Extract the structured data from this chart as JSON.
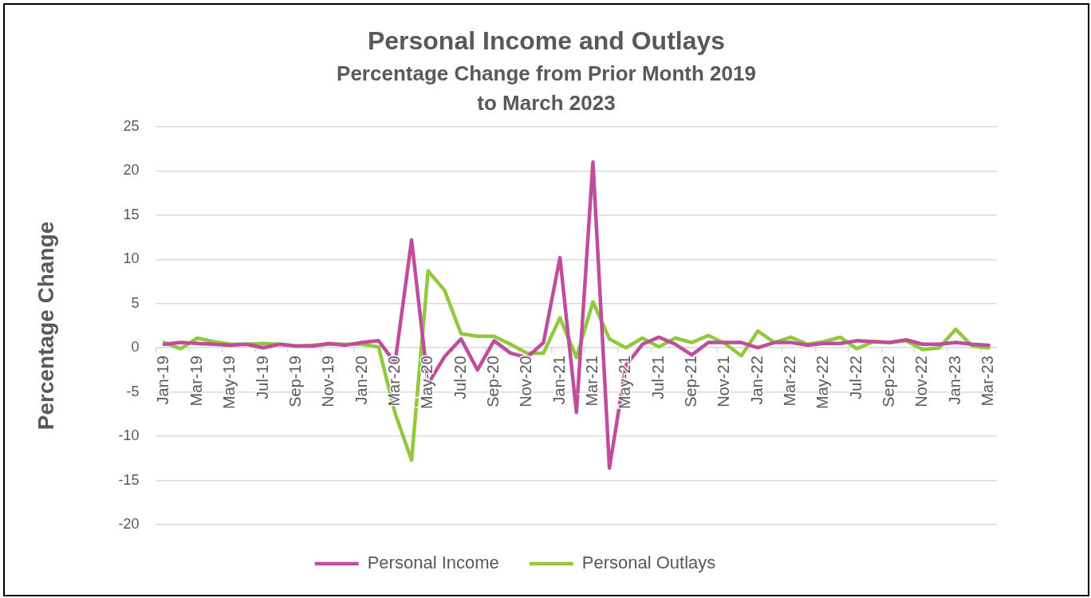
{
  "chart_data": {
    "type": "line",
    "title": "Personal Income and Outlays",
    "subtitle": "Percentage Change from Prior Month 2019 to March 2023",
    "ylabel": "Percentage Change",
    "categories": [
      "Jan-19",
      null,
      "Mar-19",
      null,
      "May-19",
      null,
      "Jul-19",
      null,
      "Sep-19",
      null,
      "Nov-19",
      null,
      "Jan-20",
      null,
      "Mar-20",
      null,
      "May-20",
      null,
      "Jul-20",
      null,
      "Sep-20",
      null,
      "Nov-20",
      null,
      "Jan-21",
      null,
      "Mar-21",
      null,
      "May-21",
      null,
      "Jul-21",
      null,
      "Sep-21",
      null,
      "Nov-21",
      null,
      "Jan-22",
      null,
      "Mar-22",
      null,
      "May-22",
      null,
      "Jul-22",
      null,
      "Sep-22",
      null,
      "Nov-22",
      null,
      "Jan-23",
      null,
      "Mar-23"
    ],
    "series": [
      {
        "name": "Personal Income",
        "color": "#bf4c9c",
        "values": [
          0.4,
          0.6,
          0.5,
          0.4,
          0.3,
          0.4,
          0.0,
          0.4,
          0.2,
          0.2,
          0.5,
          0.3,
          0.6,
          0.8,
          -1.7,
          12.2,
          -4.1,
          -1.0,
          1.0,
          -2.5,
          0.8,
          -0.6,
          -1.1,
          0.6,
          10.2,
          -7.3,
          21.0,
          -13.6,
          -2.0,
          0.4,
          1.2,
          0.4,
          -0.8,
          0.6,
          0.6,
          0.6,
          0.0,
          0.6,
          0.6,
          0.3,
          0.5,
          0.5,
          0.8,
          0.7,
          0.6,
          0.9,
          0.4,
          0.4,
          0.6,
          0.4,
          0.3
        ]
      },
      {
        "name": "Personal Outlays",
        "color": "#92c83e",
        "values": [
          0.6,
          -0.1,
          1.1,
          0.7,
          0.4,
          0.4,
          0.5,
          0.4,
          0.2,
          0.3,
          0.4,
          0.4,
          0.4,
          0.1,
          -7.4,
          -12.7,
          8.7,
          6.5,
          1.6,
          1.3,
          1.3,
          0.4,
          -0.6,
          -0.6,
          3.4,
          -1.1,
          5.2,
          1.0,
          0.0,
          1.1,
          0.1,
          1.1,
          0.6,
          1.4,
          0.5,
          -0.9,
          1.9,
          0.6,
          1.2,
          0.4,
          0.7,
          1.2,
          -0.1,
          0.7,
          0.6,
          0.8,
          -0.2,
          0.0,
          2.1,
          0.2,
          0.0
        ]
      }
    ],
    "ylim": [
      -20,
      25
    ],
    "yticks": [
      -20,
      -15,
      -10,
      -5,
      0,
      5,
      10,
      15,
      20,
      25
    ],
    "grid": "y",
    "legend": "bottom",
    "marker": "none",
    "line_style": "solid"
  }
}
